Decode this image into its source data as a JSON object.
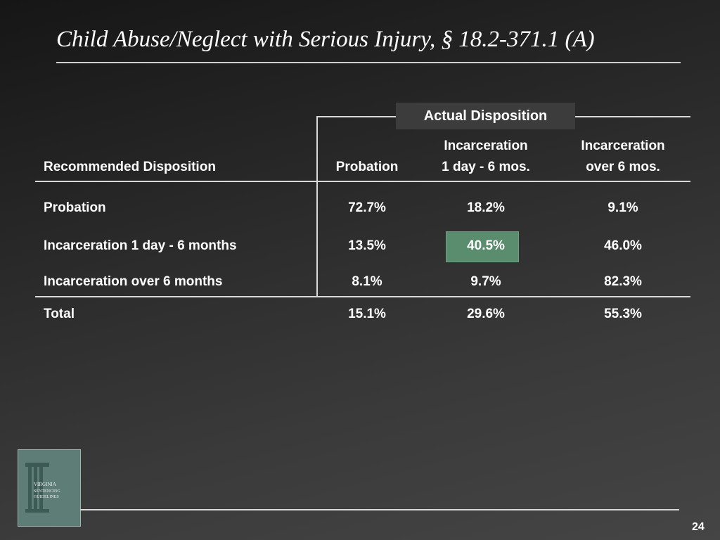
{
  "slide": {
    "title": "Child Abuse/Neglect with Serious Injury, § 18.2-371.1 (A)",
    "page_number": "24"
  },
  "table": {
    "group_header": "Actual Disposition",
    "row_header_label": "Recommended Disposition",
    "columns": [
      {
        "line1": "",
        "line2": "Probation"
      },
      {
        "line1": "Incarceration",
        "line2": "1 day - 6 mos."
      },
      {
        "line1": "Incarceration",
        "line2": "over 6 mos."
      }
    ],
    "rows": [
      {
        "label": "Probation",
        "values": [
          "72.7%",
          "18.2%",
          "9.1%"
        ]
      },
      {
        "label": "Incarceration 1 day - 6 months",
        "values": [
          "13.5%",
          "40.5%",
          "46.0%"
        ]
      },
      {
        "label": "Incarceration over 6 months",
        "values": [
          "8.1%",
          "9.7%",
          "82.3%"
        ]
      }
    ],
    "total": {
      "label": "Total",
      "values": [
        "15.1%",
        "29.6%",
        "55.3%"
      ]
    },
    "highlight_color": "#5a8c6e"
  },
  "logo": {
    "text_line1": "VIRGINIA",
    "text_line2": "SENTENCING",
    "text_line3": "GUIDELINES"
  }
}
